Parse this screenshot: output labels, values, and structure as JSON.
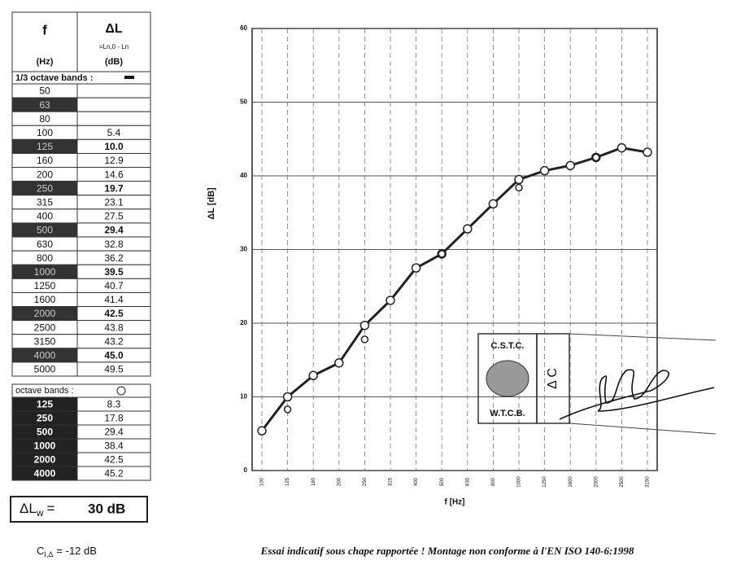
{
  "table": {
    "header": {
      "f": "f",
      "f_unit": "(Hz)",
      "dl": "ΔL",
      "dl_def": "=Ln,0 - Ln",
      "dl_unit": "(dB)"
    },
    "third_octave_title": "1/3 octave bands :",
    "third_octave_rows": [
      {
        "f": "50",
        "dl": null,
        "dark": false
      },
      {
        "f": "63",
        "dl": null,
        "dark": true
      },
      {
        "f": "80",
        "dl": null,
        "dark": false
      },
      {
        "f": "100",
        "dl": "5.4",
        "dark": false
      },
      {
        "f": "125",
        "dl": "10.0",
        "dark": true
      },
      {
        "f": "160",
        "dl": "12.9",
        "dark": false
      },
      {
        "f": "200",
        "dl": "14.6",
        "dark": false
      },
      {
        "f": "250",
        "dl": "19.7",
        "dark": true
      },
      {
        "f": "315",
        "dl": "23.1",
        "dark": false
      },
      {
        "f": "400",
        "dl": "27.5",
        "dark": false
      },
      {
        "f": "500",
        "dl": "29.4",
        "dark": true
      },
      {
        "f": "630",
        "dl": "32.8",
        "dark": false
      },
      {
        "f": "800",
        "dl": "36.2",
        "dark": false
      },
      {
        "f": "1000",
        "dl": "39.5",
        "dark": true
      },
      {
        "f": "1250",
        "dl": "40.7",
        "dark": false
      },
      {
        "f": "1600",
        "dl": "41.4",
        "dark": false
      },
      {
        "f": "2000",
        "dl": "42.5",
        "dark": true
      },
      {
        "f": "2500",
        "dl": "43.8",
        "dark": false
      },
      {
        "f": "3150",
        "dl": "43.2",
        "dark": false
      },
      {
        "f": "4000",
        "dl": "45.0",
        "dark": true
      },
      {
        "f": "5000",
        "dl": "49.5",
        "dark": false
      }
    ],
    "octave_title": "octave bands :",
    "octave_rows": [
      {
        "f": "125",
        "dl": "8.3"
      },
      {
        "f": "250",
        "dl": "17.8"
      },
      {
        "f": "500",
        "dl": "29.4"
      },
      {
        "f": "1000",
        "dl": "38.4"
      },
      {
        "f": "2000",
        "dl": "42.5"
      },
      {
        "f": "4000",
        "dl": "45.2"
      }
    ]
  },
  "rating": {
    "main": "ΔL",
    "sub": "w",
    "sign": "=",
    "value": "30 dB"
  },
  "c_term": {
    "main": "C",
    "sub": "I,Δ",
    "rest": "= -12 dB"
  },
  "caption": "Essai indicatif sous chape rapportée ! Montage non conforme à l'EN ISO 140-6:1998",
  "stamp": {
    "top": "C.S.T.C.",
    "bottom": "W.T.C.B.",
    "side": "Δ C"
  },
  "chart_data": {
    "type": "line",
    "x_label": "f [Hz]",
    "y_label": "ΔL [dB]",
    "categories": [
      "100",
      "125",
      "160",
      "200",
      "250",
      "315",
      "400",
      "500",
      "630",
      "800",
      "1000",
      "1250",
      "1600",
      "2000",
      "2500",
      "3150"
    ],
    "series": [
      {
        "color": "#222222",
        "values": [
          5.4,
          10.0,
          12.9,
          14.6,
          19.7,
          23.1,
          27.5,
          29.4,
          32.8,
          36.2,
          39.5,
          40.7,
          41.4,
          42.5,
          43.8,
          43.2
        ],
        "line": true
      },
      {
        "color": "#222222",
        "values": [
          null,
          8.3,
          null,
          null,
          17.8,
          null,
          null,
          29.4,
          null,
          null,
          38.4,
          null,
          null,
          42.5,
          null,
          null
        ],
        "line": false
      }
    ],
    "ylim": [
      0,
      60
    ],
    "yticks": [
      0,
      10,
      20,
      30,
      40,
      50,
      60
    ],
    "grid": true
  }
}
